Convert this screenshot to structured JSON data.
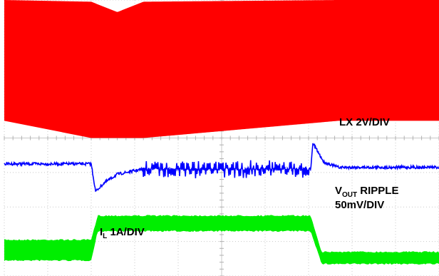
{
  "chart_data": {
    "type": "line",
    "title": "",
    "xlabel": "",
    "ylabel": "",
    "grid": true,
    "grid_divisions": {
      "x": 10,
      "y": 8
    },
    "series": [
      {
        "name": "LX 2V/DIV",
        "color": "#ff0000",
        "x_div": [
          0.0,
          2.0,
          2.6,
          3.2,
          7.7,
          10.0
        ],
        "y_high_div": [
          0.0,
          0.05,
          0.35,
          0.05,
          0.0,
          0.0
        ],
        "y_low_div": [
          3.5,
          4.0,
          4.0,
          4.0,
          3.5,
          3.5
        ],
        "switching_start_div": 2.0,
        "switching_end_div": 7.7
      },
      {
        "name": "VOUT RIPPLE 50mV/DIV",
        "color": "#0000ff",
        "x_div": [
          0.0,
          2.0,
          2.05,
          2.1,
          2.3,
          2.6,
          3.2,
          7.05,
          7.1,
          7.35,
          7.7,
          10.0
        ],
        "y_mid_div": [
          4.75,
          4.75,
          5.15,
          5.55,
          5.3,
          5.05,
          4.9,
          4.9,
          4.15,
          4.7,
          4.85,
          4.85
        ],
        "ripple_region_div": [
          3.2,
          7.0
        ]
      },
      {
        "name": "IL 1A/DIV",
        "color": "#00ee00",
        "x_div": [
          0.0,
          2.0,
          2.15,
          7.05,
          7.3,
          10.0
        ],
        "y_top_div": [
          6.95,
          6.95,
          6.25,
          6.25,
          7.3,
          7.3
        ],
        "y_bot_div": [
          7.55,
          7.55,
          6.7,
          6.7,
          7.65,
          7.65
        ]
      }
    ],
    "annotations": {
      "lx": "LX 2V/DIV",
      "vout_v": "V",
      "vout_sub": "OUT",
      "vout_rest": " RIPPLE",
      "vout_line2": "50mV/DIV",
      "il_i": "I",
      "il_sub": "L",
      "il_rest": " 1A/DIV"
    }
  }
}
